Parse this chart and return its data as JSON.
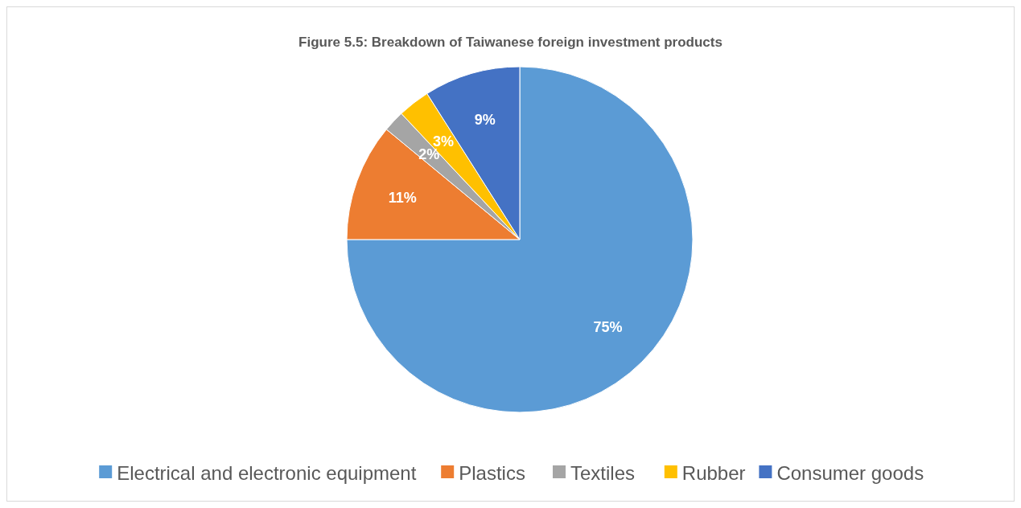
{
  "chart_data": {
    "type": "pie",
    "title": "Figure 5.5: Breakdown of Taiwanese foreign investment products",
    "categories": [
      "Electrical and electronic equipment",
      "Plastics",
      "Textiles",
      "Rubber",
      "Consumer goods"
    ],
    "values": [
      75,
      11,
      2,
      3,
      9
    ],
    "value_labels": [
      "75%",
      "11%",
      "2%",
      "3%",
      "9%"
    ],
    "colors": [
      "#5b9bd5",
      "#ed7d31",
      "#a5a5a5",
      "#ffc000",
      "#4472c4"
    ],
    "legend": "bottom"
  }
}
